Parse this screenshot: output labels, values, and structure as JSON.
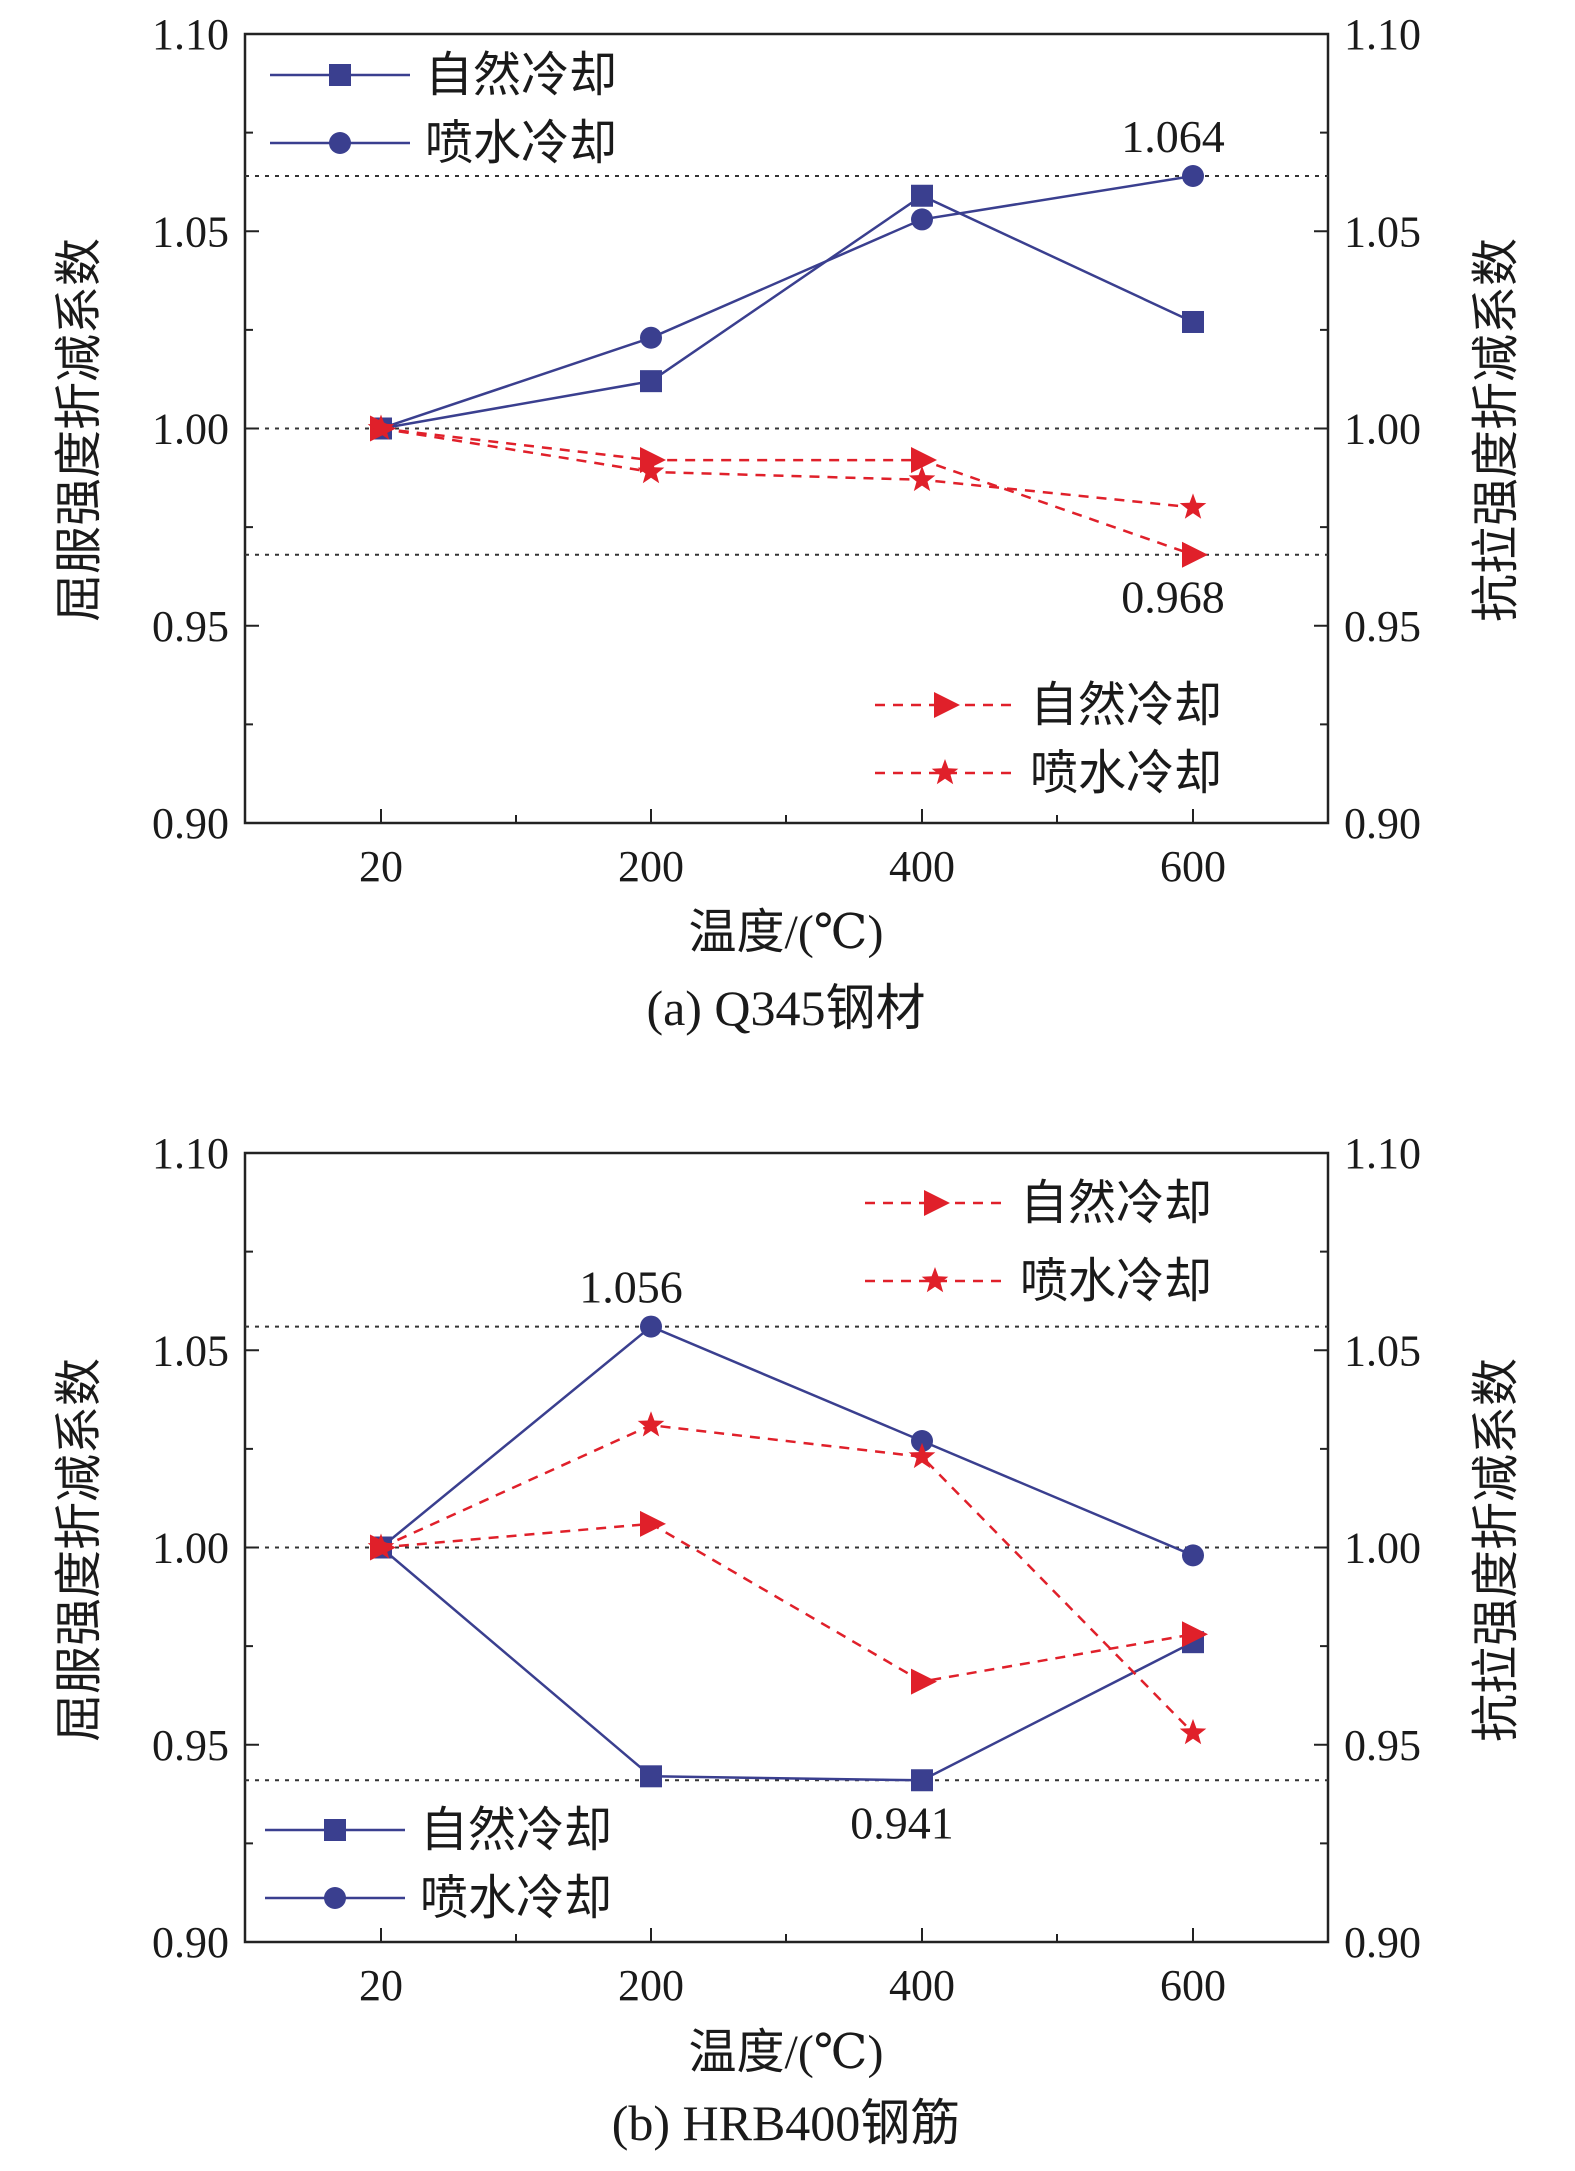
{
  "chart_data": [
    {
      "type": "line",
      "caption": "(a) Q345钢材",
      "xlabel": "温度/(℃)",
      "ylabel_left": "屈服强度折减系数",
      "ylabel_right": "抗拉强度折减系数",
      "categories": [
        "20",
        "200",
        "400",
        "600"
      ],
      "ylim": [
        0.9,
        1.1
      ],
      "yticks": [
        "0.90",
        "0.95",
        "1.00",
        "1.05",
        "1.10"
      ],
      "series_left": [
        {
          "name": "自然冷却",
          "marker": "square",
          "color": "#3a3f8f",
          "values": [
            1.0,
            1.012,
            1.059,
            1.027
          ]
        },
        {
          "name": "喷水冷却",
          "marker": "circle",
          "color": "#3a3f8f",
          "values": [
            1.0,
            1.023,
            1.053,
            1.064
          ]
        }
      ],
      "series_right": [
        {
          "name": "自然冷却",
          "marker": "triangle-right",
          "color": "#e0202a",
          "values": [
            1.0,
            0.992,
            0.992,
            0.968
          ]
        },
        {
          "name": "喷水冷却",
          "marker": "star",
          "color": "#e0202a",
          "values": [
            1.0,
            0.989,
            0.987,
            0.98
          ]
        }
      ],
      "reference_lines": [
        1.064,
        1.0,
        0.968
      ],
      "annotations": [
        {
          "text": "1.064",
          "x": "600",
          "y": 1.064,
          "pos": "above"
        },
        {
          "text": "0.968",
          "x": "600",
          "y": 0.968,
          "pos": "below"
        }
      ],
      "legend_left_position": "top-left",
      "legend_right_position": "bottom-right"
    },
    {
      "type": "line",
      "caption": "(b) HRB400钢筋",
      "xlabel": "温度/(℃)",
      "ylabel_left": "屈服强度折减系数",
      "ylabel_right": "抗拉强度折减系数",
      "categories": [
        "20",
        "200",
        "400",
        "600"
      ],
      "ylim": [
        0.9,
        1.1
      ],
      "yticks": [
        "0.90",
        "0.95",
        "1.00",
        "1.05",
        "1.10"
      ],
      "series_left": [
        {
          "name": "自然冷却",
          "marker": "square",
          "color": "#3a3f8f",
          "values": [
            1.0,
            0.942,
            0.941,
            0.976
          ]
        },
        {
          "name": "喷水冷却",
          "marker": "circle",
          "color": "#3a3f8f",
          "values": [
            1.0,
            1.056,
            1.027,
            0.998
          ]
        }
      ],
      "series_right": [
        {
          "name": "自然冷却",
          "marker": "triangle-right",
          "color": "#e0202a",
          "values": [
            1.0,
            1.006,
            0.966,
            0.978
          ]
        },
        {
          "name": "喷水冷却",
          "marker": "star",
          "color": "#e0202a",
          "values": [
            1.0,
            1.031,
            1.023,
            0.953
          ]
        }
      ],
      "reference_lines": [
        1.056,
        1.0,
        0.941
      ],
      "annotations": [
        {
          "text": "1.056",
          "x": "200",
          "y": 1.056,
          "pos": "above"
        },
        {
          "text": "0.941",
          "x": "400",
          "y": 0.941,
          "pos": "below"
        }
      ],
      "legend_left_position": "bottom-left",
      "legend_right_position": "top-right"
    }
  ]
}
